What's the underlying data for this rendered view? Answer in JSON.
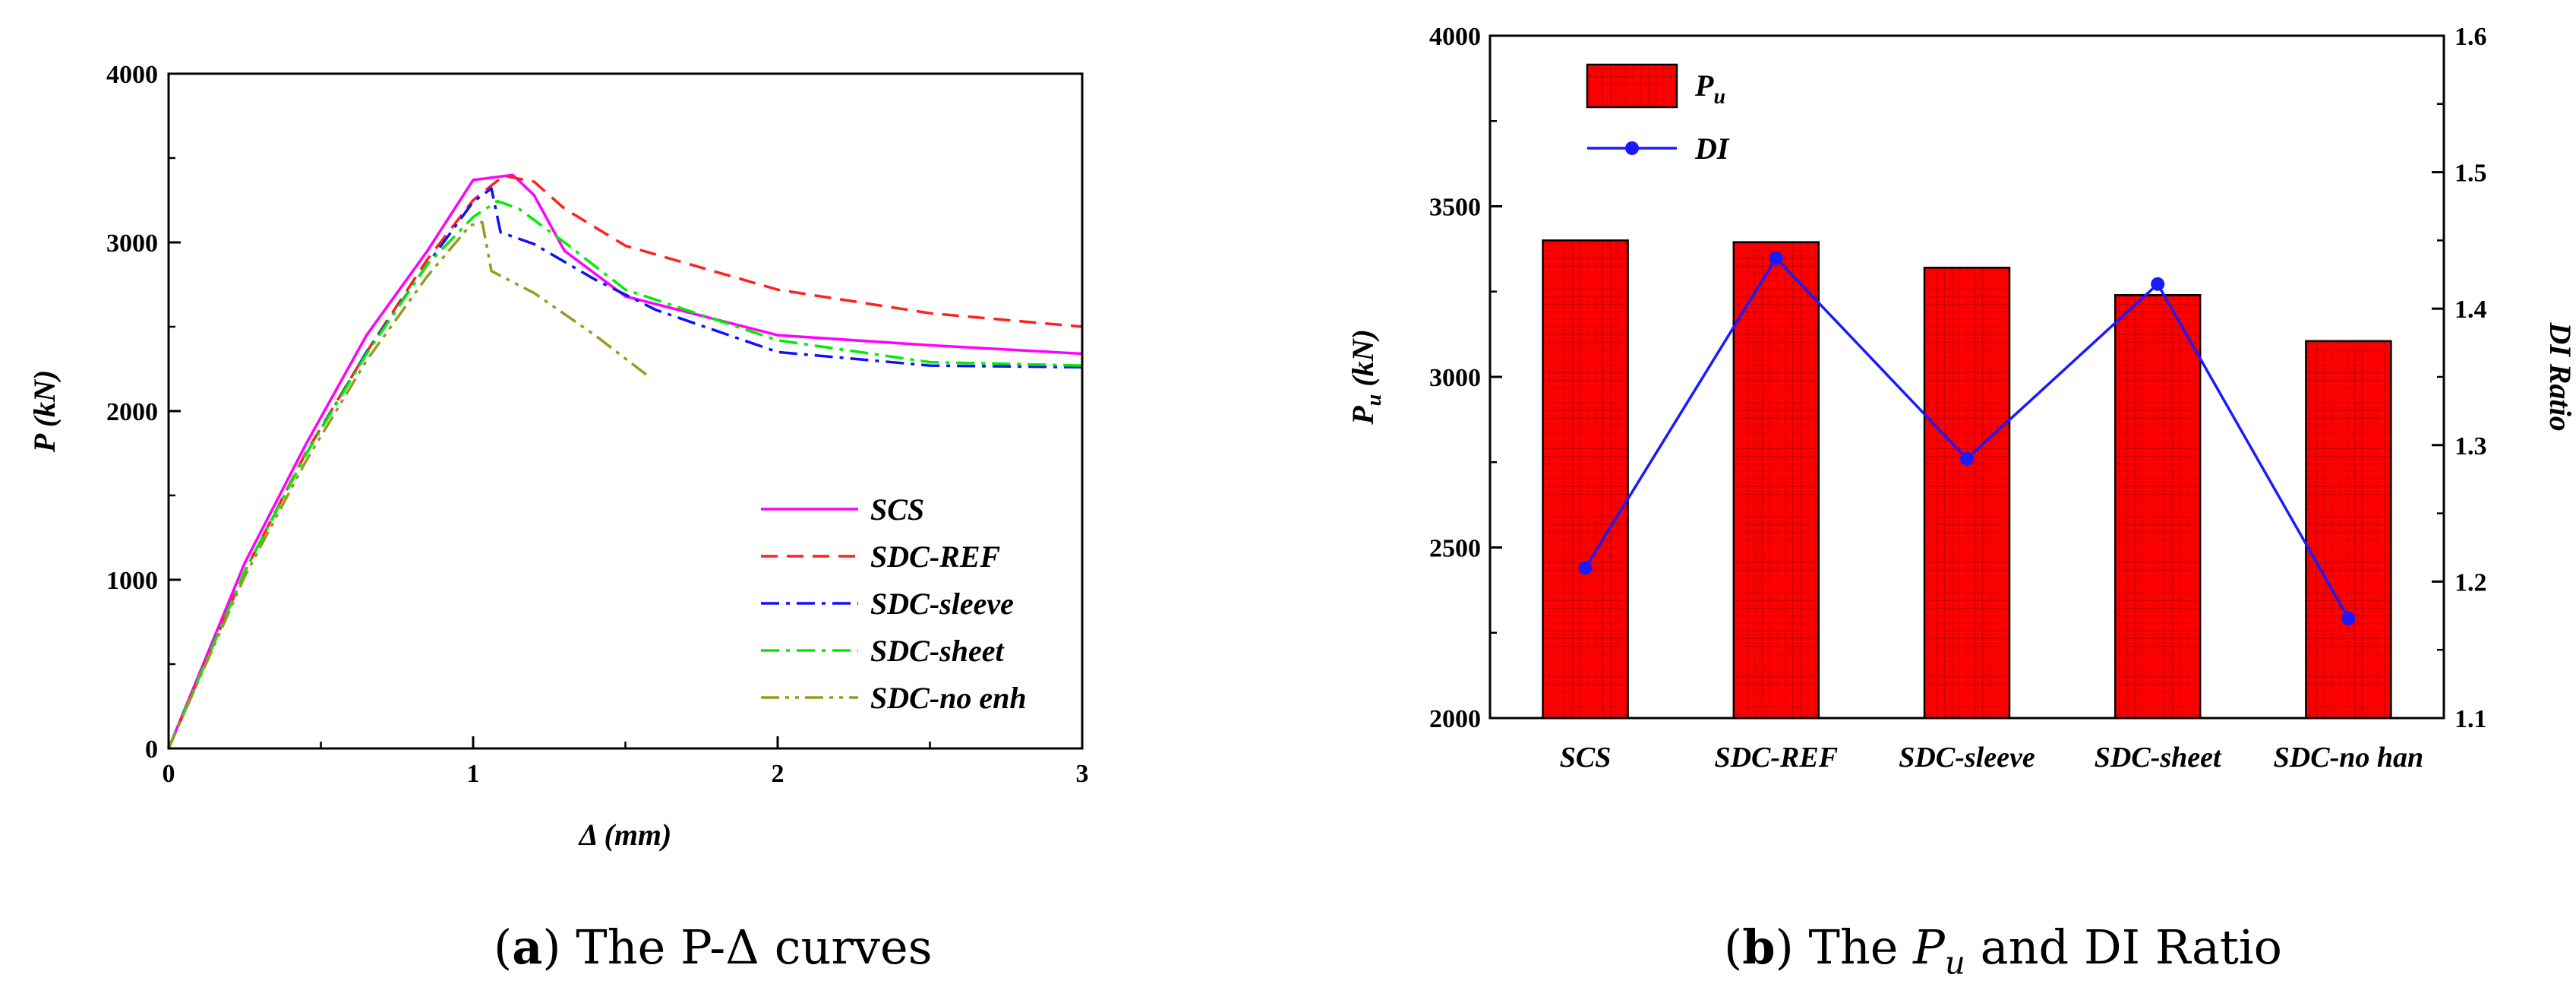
{
  "captions": {
    "a": {
      "label": "a",
      "text": " The P-Δ curves"
    },
    "b": {
      "label": "b",
      "text_before": " The ",
      "symbol": "P",
      "symbol_sub": "u",
      "text_after": " and DI Ratio"
    }
  },
  "chart_data": [
    {
      "type": "line",
      "xlabel": "Δ (mm)",
      "ylabel": "P (kN)",
      "xlim": [
        0,
        3
      ],
      "ylim": [
        0,
        4000
      ],
      "xticks": [
        "0",
        "1",
        "2",
        "3"
      ],
      "yticks": [
        "0",
        "1000",
        "2000",
        "3000",
        "4000"
      ],
      "legend_position": "bottom-right",
      "series": [
        {
          "name": "SCS",
          "color": "#ff00ff",
          "dash": "solid",
          "x": [
            0,
            0.25,
            0.45,
            0.65,
            0.85,
            1.0,
            1.13,
            1.2,
            1.3,
            1.5,
            2.0,
            2.5,
            3.0
          ],
          "y": [
            0,
            1100,
            1800,
            2450,
            2950,
            3370,
            3400,
            3280,
            2950,
            2680,
            2450,
            2390,
            2340
          ]
        },
        {
          "name": "SDC-REF",
          "color": "#ff2020",
          "dash": "dashed",
          "x": [
            0,
            0.25,
            0.45,
            0.65,
            0.85,
            1.0,
            1.1,
            1.2,
            1.3,
            1.5,
            2.0,
            2.5,
            3.0
          ],
          "y": [
            0,
            1050,
            1750,
            2350,
            2900,
            3250,
            3395,
            3360,
            3200,
            2980,
            2720,
            2580,
            2500
          ]
        },
        {
          "name": "SDC-sleeve",
          "color": "#1010ff",
          "dash": "dashdot",
          "x": [
            0,
            0.25,
            0.45,
            0.65,
            0.85,
            1.0,
            1.06,
            1.09,
            1.2,
            1.4,
            1.6,
            2.0,
            2.5,
            3.0
          ],
          "y": [
            0,
            1050,
            1740,
            2350,
            2870,
            3240,
            3320,
            3060,
            2990,
            2780,
            2600,
            2350,
            2270,
            2260
          ]
        },
        {
          "name": "SDC-sheet",
          "color": "#00ee00",
          "dash": "dashdot",
          "x": [
            0,
            0.25,
            0.45,
            0.65,
            0.85,
            1.0,
            1.08,
            1.15,
            1.3,
            1.5,
            2.0,
            2.5,
            3.0
          ],
          "y": [
            0,
            1050,
            1740,
            2340,
            2870,
            3150,
            3245,
            3200,
            3000,
            2720,
            2420,
            2290,
            2270
          ]
        },
        {
          "name": "SDC-no enh",
          "color": "#9a9a20",
          "dash": "dashdotdot",
          "x": [
            0,
            0.25,
            0.45,
            0.65,
            0.85,
            0.99,
            1.03,
            1.06,
            1.2,
            1.4,
            1.58
          ],
          "y": [
            0,
            1020,
            1700,
            2300,
            2800,
            3100,
            3120,
            2830,
            2700,
            2450,
            2200
          ]
        }
      ]
    },
    {
      "type": "bar",
      "categories": [
        "SCS",
        "SDC-REF",
        "SDC-sleeve",
        "SDC-sheet",
        "SDC-no han"
      ],
      "ylabel": "Pu (kN)",
      "ylabel_main": "P",
      "ylabel_sub": "u",
      "ylabel_unit": " (kN)",
      "y2label": "DI Ratio",
      "ylim": [
        2000,
        4000
      ],
      "y2lim": [
        1.1,
        1.6
      ],
      "yticks": [
        "2000",
        "2500",
        "3000",
        "3500",
        "4000"
      ],
      "y2ticks": [
        "1.1",
        "1.2",
        "1.3",
        "1.4",
        "1.5",
        "1.6"
      ],
      "legend_position": "top-left",
      "series": [
        {
          "name": "Pu",
          "name_main": "P",
          "name_sub": "u",
          "type": "bar",
          "axis": "left",
          "color": "#ff0000",
          "values": [
            3400,
            3395,
            3320,
            3240,
            3105
          ]
        },
        {
          "name": "DI",
          "type": "line",
          "axis": "right",
          "color": "#1a1aff",
          "values": [
            1.21,
            1.437,
            1.29,
            1.418,
            1.173
          ]
        }
      ]
    }
  ]
}
